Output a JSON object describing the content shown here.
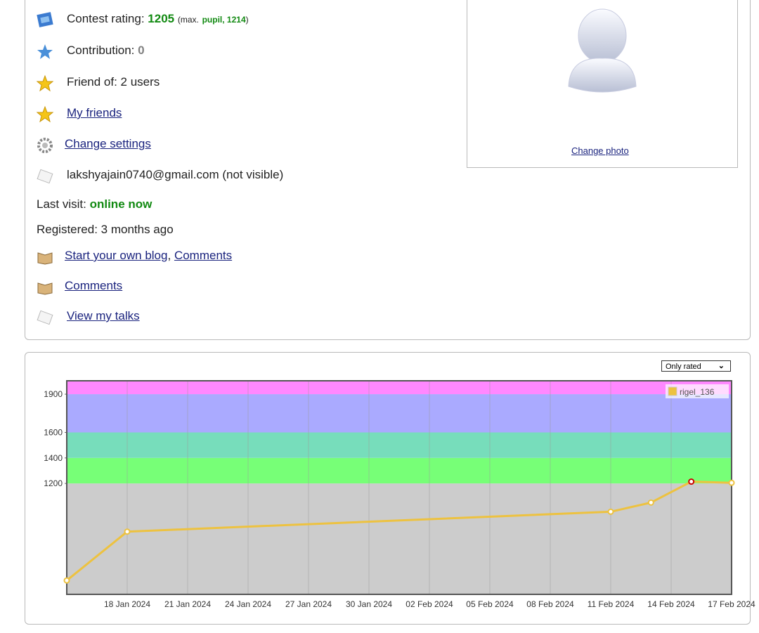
{
  "profile": {
    "contest_rating": {
      "label": "Contest rating:",
      "value": "1205",
      "max_prefix": "(max.",
      "max_rating": "pupil, 1214",
      "max_suffix": ")"
    },
    "contribution": {
      "label": "Contribution:",
      "value": "0"
    },
    "friend_of": "Friend of: 2 users",
    "my_friends": "My friends",
    "change_settings": "Change settings",
    "email": "lakshyajain0740@gmail.com (not visible)",
    "last_visit": {
      "label": "Last visit:",
      "value": "online now"
    },
    "registered": "Registered: 3 months ago",
    "blog": {
      "link": "Start your own blog",
      "separator": ",",
      "comments": "Comments"
    },
    "comments": "Comments",
    "talks": "View my talks"
  },
  "photo": {
    "link": "Change photo"
  },
  "chart_data": {
    "type": "line",
    "filter": "Only rated",
    "x": [
      "2024-01-15",
      "2024-01-18",
      "2024-02-11",
      "2024-02-13",
      "2024-02-15",
      "2024-02-17"
    ],
    "series": [
      {
        "name": "rigel_136",
        "color": "#edc240",
        "values": [
          439,
          822,
          978,
          1050,
          1214,
          1205
        ]
      }
    ],
    "max_marker_color": "#cc0000",
    "xlim": [
      "2024-01-15",
      "2024-02-17"
    ],
    "xticks": [
      {
        "value": "2024-01-18",
        "label": "18 Jan 2024"
      },
      {
        "value": "2024-01-21",
        "label": "21 Jan 2024"
      },
      {
        "value": "2024-01-24",
        "label": "24 Jan 2024"
      },
      {
        "value": "2024-01-27",
        "label": "27 Jan 2024"
      },
      {
        "value": "2024-01-30",
        "label": "30 Jan 2024"
      },
      {
        "value": "2024-02-02",
        "label": "02 Feb 2024"
      },
      {
        "value": "2024-02-05",
        "label": "05 Feb 2024"
      },
      {
        "value": "2024-02-08",
        "label": "08 Feb 2024"
      },
      {
        "value": "2024-02-11",
        "label": "11 Feb 2024"
      },
      {
        "value": "2024-02-14",
        "label": "14 Feb 2024"
      },
      {
        "value": "2024-02-17",
        "label": "17 Feb 2024"
      }
    ],
    "ylim": [
      330,
      2005
    ],
    "yticks": [
      1200,
      1400,
      1600,
      1900
    ],
    "band_edges": [
      1200,
      1400,
      1600,
      1900
    ],
    "band_colors": [
      "#cccccc",
      "#77ff77",
      "#77ddbb",
      "#aaaaff",
      "#ff88ff"
    ],
    "grid": true,
    "legend": "upper right"
  }
}
